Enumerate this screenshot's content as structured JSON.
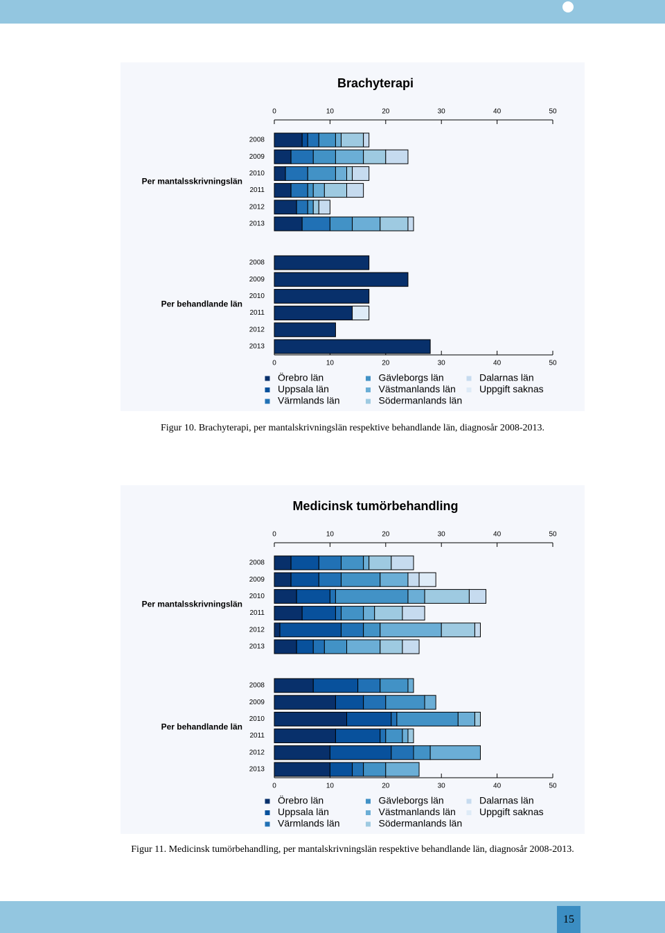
{
  "chart_data": [
    {
      "type": "bar",
      "orientation": "horizontal",
      "stacked": true,
      "title": "Brachyterapi",
      "xlim": [
        0,
        50
      ],
      "xticks": [
        0,
        10,
        20,
        30,
        40,
        50
      ],
      "series": [
        {
          "name": "Örebro län",
          "color": "#08306b"
        },
        {
          "name": "Uppsala län",
          "color": "#08519c"
        },
        {
          "name": "Värmlands län",
          "color": "#2171b5"
        },
        {
          "name": "Gävleborgs län",
          "color": "#4292c6"
        },
        {
          "name": "Västmanlands län",
          "color": "#6baed6"
        },
        {
          "name": "Södermanlands län",
          "color": "#9ecae1"
        },
        {
          "name": "Dalarnas län",
          "color": "#c6dbef"
        },
        {
          "name": "Uppgift saknas",
          "color": "#deebf7"
        }
      ],
      "panels": [
        {
          "label": "Per mantalsskrivningslän",
          "categories": [
            "2008",
            "2009",
            "2010",
            "2011",
            "2012",
            "2013"
          ],
          "values": [
            [
              5,
              3,
              2,
              3,
              4,
              5
            ],
            [
              1,
              0,
              0,
              0,
              0,
              0
            ],
            [
              2,
              4,
              4,
              3,
              2,
              5
            ],
            [
              3,
              4,
              5,
              1,
              1,
              4
            ],
            [
              1,
              5,
              2,
              2,
              0,
              5
            ],
            [
              4,
              4,
              1,
              4,
              1,
              5
            ],
            [
              1,
              4,
              3,
              3,
              2,
              1
            ],
            [
              0,
              0,
              0,
              0,
              0,
              0
            ]
          ]
        },
        {
          "label": "Per behandlande län",
          "categories": [
            "2008",
            "2009",
            "2010",
            "2011",
            "2012",
            "2013"
          ],
          "values": [
            [
              17,
              24,
              17,
              14,
              11,
              28
            ],
            [
              0,
              0,
              0,
              0,
              0,
              0
            ],
            [
              0,
              0,
              0,
              0,
              0,
              0
            ],
            [
              0,
              0,
              0,
              0,
              0,
              0
            ],
            [
              0,
              0,
              0,
              0,
              0,
              0
            ],
            [
              0,
              0,
              0,
              0,
              0,
              0
            ],
            [
              0,
              0,
              0,
              0,
              0,
              0
            ],
            [
              0,
              0,
              0,
              3,
              0,
              0
            ]
          ]
        }
      ]
    },
    {
      "type": "bar",
      "orientation": "horizontal",
      "stacked": true,
      "title": "Medicinsk tumörbehandling",
      "xlim": [
        0,
        50
      ],
      "xticks": [
        0,
        10,
        20,
        30,
        40,
        50
      ],
      "series": [
        {
          "name": "Örebro län",
          "color": "#08306b"
        },
        {
          "name": "Uppsala län",
          "color": "#08519c"
        },
        {
          "name": "Värmlands län",
          "color": "#2171b5"
        },
        {
          "name": "Gävleborgs län",
          "color": "#4292c6"
        },
        {
          "name": "Västmanlands län",
          "color": "#6baed6"
        },
        {
          "name": "Södermanlands län",
          "color": "#9ecae1"
        },
        {
          "name": "Dalarnas län",
          "color": "#c6dbef"
        },
        {
          "name": "Uppgift saknas",
          "color": "#deebf7"
        }
      ],
      "panels": [
        {
          "label": "Per mantalsskrivningslän",
          "categories": [
            "2008",
            "2009",
            "2010",
            "2011",
            "2012",
            "2013"
          ],
          "values": [
            [
              3,
              3,
              4,
              5,
              1,
              4
            ],
            [
              5,
              5,
              6,
              6,
              11,
              3
            ],
            [
              4,
              4,
              1,
              1,
              4,
              2
            ],
            [
              4,
              7,
              13,
              4,
              3,
              4
            ],
            [
              1,
              5,
              3,
              2,
              11,
              6
            ],
            [
              4,
              0,
              8,
              5,
              6,
              4
            ],
            [
              4,
              2,
              3,
              4,
              1,
              3
            ],
            [
              0,
              3,
              0,
              0,
              0,
              0
            ]
          ]
        },
        {
          "label": "Per behandlande län",
          "categories": [
            "2008",
            "2009",
            "2010",
            "2011",
            "2012",
            "2013"
          ],
          "values": [
            [
              7,
              11,
              13,
              11,
              10,
              10
            ],
            [
              8,
              5,
              8,
              8,
              11,
              4
            ],
            [
              4,
              4,
              1,
              1,
              4,
              2
            ],
            [
              5,
              7,
              11,
              3,
              3,
              4
            ],
            [
              1,
              2,
              3,
              1,
              9,
              6
            ],
            [
              0,
              0,
              1,
              1,
              0,
              0
            ],
            [
              0,
              0,
              0,
              0,
              0,
              0
            ],
            [
              0,
              0,
              0,
              0,
              0,
              0
            ]
          ]
        }
      ]
    }
  ],
  "captions": [
    "Figur 10. Brachyterapi, per mantalskrivningslän respektive behandlande län, diagnosår 2008-2013.",
    "Figur 11. Medicinsk tumörbehandling, per mantalskrivningslän respektive behandlande län, diagnosår 2008-2013."
  ],
  "page_number": "15"
}
